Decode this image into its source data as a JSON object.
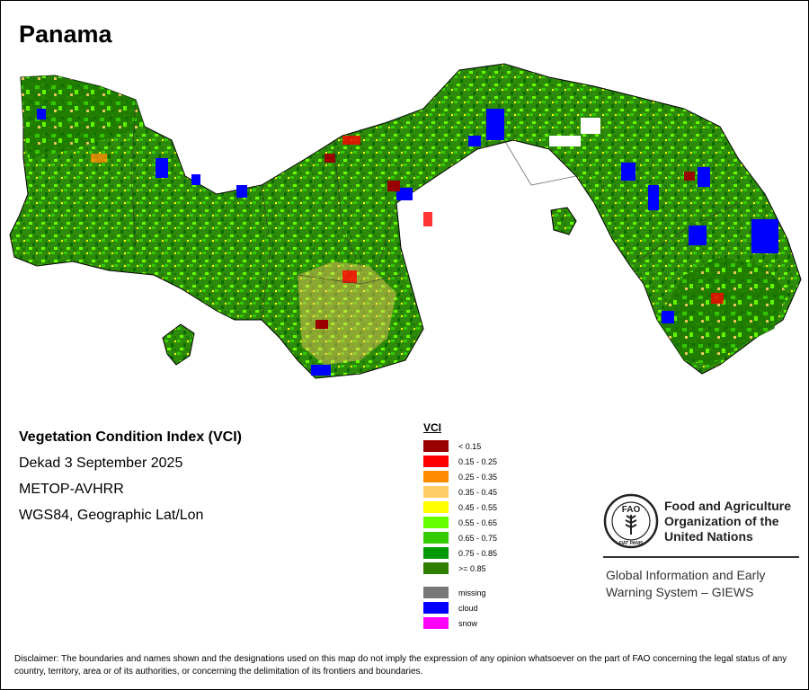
{
  "map": {
    "title": "Panama",
    "info_lines": [
      "Vegetation Condition Index (VCI)",
      "Dekad 3 September 2025",
      "METOP-AVHRR",
      "WGS84, Geographic Lat/Lon"
    ]
  },
  "legend": {
    "title": "VCI",
    "classes": [
      {
        "label": "< 0.15",
        "color": "#990000"
      },
      {
        "label": "0.15 - 0.25",
        "color": "#ff0000"
      },
      {
        "label": "0.25 - 0.35",
        "color": "#ff8c00"
      },
      {
        "label": "0.35 - 0.45",
        "color": "#ffcc66"
      },
      {
        "label": "0.45 - 0.55",
        "color": "#ffff00"
      },
      {
        "label": "0.55 - 0.65",
        "color": "#66ff00"
      },
      {
        "label": "0.65 - 0.75",
        "color": "#33cc00"
      },
      {
        "label": "0.75 - 0.85",
        "color": "#009900"
      },
      {
        "label": ">= 0.85",
        "color": "#2e7d00"
      }
    ],
    "other": [
      {
        "label": "missing",
        "color": "#777777"
      },
      {
        "label": "cloud",
        "color": "#0000ff"
      },
      {
        "label": "snow",
        "color": "#ff00ff"
      }
    ]
  },
  "org": {
    "emblem_text_top": "FAO",
    "emblem_text_bottom": "FIAT PANIS",
    "name": "Food and Agriculture Organization of the United Nations",
    "system": "Global Information and Early Warning System – GIEWS"
  },
  "disclaimer": "Disclaimer: The boundaries and names shown and the designations used on this map do not imply the expression of any opinion whatsoever on the part of FAO concerning the legal status of any country, territory, area or of its authorities, or concerning the delimitation of its frontiers and boundaries."
}
